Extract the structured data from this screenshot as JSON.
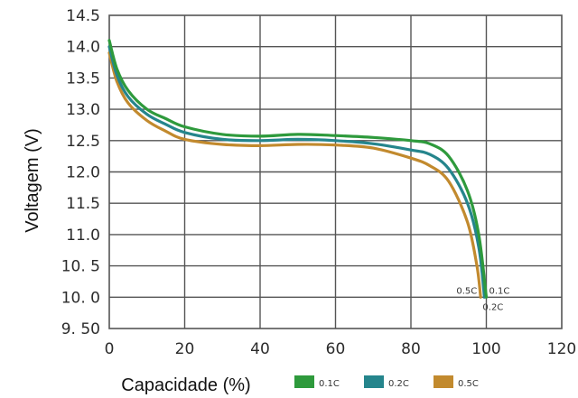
{
  "chart_data": {
    "type": "line",
    "xlabel": "Capacidade (%)",
    "ylabel": "Voltagem (V)",
    "xlim": [
      0,
      120
    ],
    "ylim": [
      9.5,
      14.5
    ],
    "x_ticks": [
      "0",
      "20",
      "40",
      "60",
      "80",
      "100",
      "120"
    ],
    "y_ticks": [
      {
        "v": 14.5,
        "label": "14.5"
      },
      {
        "v": 14.0,
        "label": "14.0"
      },
      {
        "v": 13.5,
        "label": "13.5"
      },
      {
        "v": 13.0,
        "label": "13.0"
      },
      {
        "v": 12.5,
        "label": "12.5"
      },
      {
        "v": 12.0,
        "label": "12.0"
      },
      {
        "v": 11.5,
        "label": "11.5"
      },
      {
        "v": 11.0,
        "label": "11.0"
      },
      {
        "v": 10.5,
        "label": "10. 5"
      },
      {
        "v": 10.0,
        "label": "10. 0"
      },
      {
        "v": 9.5,
        "label": "9. 50"
      }
    ],
    "grid": true,
    "legend": "bottom",
    "series": [
      {
        "name": "0.1C",
        "end_label": "0.1C",
        "color": "#2e9a3c",
        "points": [
          [
            0,
            14.1
          ],
          [
            2,
            13.65
          ],
          [
            5,
            13.3
          ],
          [
            10,
            13.0
          ],
          [
            15,
            12.85
          ],
          [
            20,
            12.72
          ],
          [
            30,
            12.6
          ],
          [
            40,
            12.57
          ],
          [
            50,
            12.6
          ],
          [
            60,
            12.58
          ],
          [
            70,
            12.55
          ],
          [
            80,
            12.5
          ],
          [
            85,
            12.45
          ],
          [
            90,
            12.25
          ],
          [
            95,
            11.7
          ],
          [
            98,
            11.0
          ],
          [
            100,
            10.0
          ]
        ]
      },
      {
        "name": "0.2C",
        "end_label": "0.2C",
        "color": "#25858c",
        "points": [
          [
            0,
            14.0
          ],
          [
            2,
            13.55
          ],
          [
            5,
            13.2
          ],
          [
            10,
            12.92
          ],
          [
            15,
            12.76
          ],
          [
            20,
            12.63
          ],
          [
            30,
            12.52
          ],
          [
            40,
            12.5
          ],
          [
            50,
            12.52
          ],
          [
            60,
            12.5
          ],
          [
            70,
            12.45
          ],
          [
            80,
            12.35
          ],
          [
            85,
            12.28
          ],
          [
            90,
            12.05
          ],
          [
            95,
            11.5
          ],
          [
            98,
            10.8
          ],
          [
            99.5,
            10.0
          ]
        ]
      },
      {
        "name": "0.5C",
        "end_label": "0.5C",
        "color": "#c28a2e",
        "points": [
          [
            0,
            13.9
          ],
          [
            2,
            13.45
          ],
          [
            5,
            13.1
          ],
          [
            10,
            12.82
          ],
          [
            15,
            12.65
          ],
          [
            20,
            12.52
          ],
          [
            30,
            12.44
          ],
          [
            40,
            12.42
          ],
          [
            50,
            12.44
          ],
          [
            60,
            12.43
          ],
          [
            70,
            12.38
          ],
          [
            80,
            12.22
          ],
          [
            85,
            12.1
          ],
          [
            90,
            11.85
          ],
          [
            95,
            11.2
          ],
          [
            97.5,
            10.5
          ],
          [
            98.5,
            10.0
          ]
        ]
      }
    ]
  }
}
